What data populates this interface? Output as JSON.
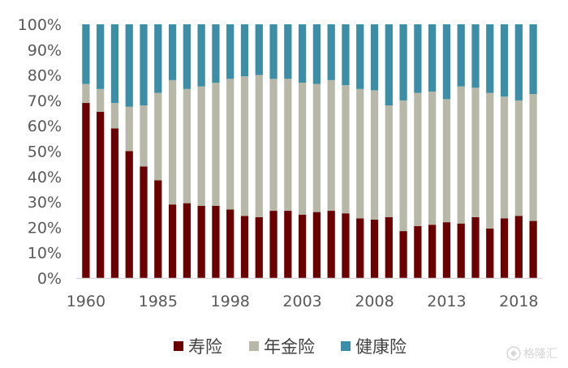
{
  "chart_data": {
    "type": "stacked_bar_100",
    "x_tick_labels": [
      "1960",
      "1985",
      "1998",
      "2003",
      "2008",
      "2013",
      "2018"
    ],
    "y_tick_labels": [
      "0%",
      "10%",
      "20%",
      "30%",
      "40%",
      "50%",
      "60%",
      "70%",
      "80%",
      "90%",
      "100%"
    ],
    "ylim": [
      0,
      100
    ],
    "legend_position": "bottom",
    "grid": false,
    "series": [
      {
        "name": "寿险",
        "color": "#6b0000",
        "values": [
          69,
          65.5,
          59,
          50,
          44,
          38.5,
          29,
          29.5,
          28.5,
          28.5,
          27,
          24.5,
          24,
          26.5,
          26.5,
          25,
          26,
          26.5,
          25.5,
          23.5,
          23,
          24,
          18.5,
          20.5,
          21,
          22,
          21.5,
          24,
          19.5,
          23.5,
          24.5,
          22.5
        ]
      },
      {
        "name": "年金险",
        "color": "#b8b8a8",
        "values": [
          7.5,
          9,
          10,
          17.5,
          24,
          34.5,
          49,
          45,
          47,
          48.5,
          51.5,
          55,
          56,
          52,
          52,
          52,
          50.5,
          51.5,
          50.5,
          51,
          51,
          44,
          51.5,
          52.5,
          52.5,
          48.5,
          54,
          51,
          53.5,
          48,
          45.5,
          50
        ]
      },
      {
        "name": "健康险",
        "color": "#3b8ea5",
        "values": [
          23.5,
          25.5,
          31,
          32.5,
          32,
          27,
          22,
          25.5,
          24.5,
          23,
          21.5,
          20.5,
          20,
          21.5,
          21.5,
          23,
          23.5,
          22,
          24,
          25.5,
          26,
          32,
          30,
          27,
          26.5,
          29.5,
          24.5,
          25,
          27,
          28.5,
          30,
          27.5
        ]
      }
    ]
  },
  "watermark": {
    "icon": "globe-icon",
    "text": "格隆汇"
  }
}
